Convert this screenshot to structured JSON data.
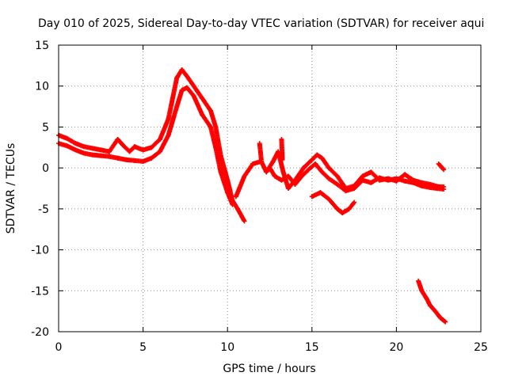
{
  "chart_data": {
    "type": "scatter",
    "title": "Day 010 of 2025, Sidereal Day-to-day VTEC variation (SDTVAR) for receiver aqui",
    "xlabel": "GPS time / hours",
    "ylabel": "SDTVAR / TECUs",
    "xlim": [
      0,
      25
    ],
    "ylim": [
      -20,
      15
    ],
    "xticks": [
      0,
      5,
      10,
      15,
      20,
      25
    ],
    "yticks": [
      -20,
      -15,
      -10,
      -5,
      0,
      5,
      10,
      15
    ],
    "grid": true,
    "legend": "none",
    "marker": "plus",
    "color": "#ff0000",
    "series": [
      {
        "name": "main-trace-upper",
        "points": [
          [
            0.0,
            4.0
          ],
          [
            0.5,
            3.6
          ],
          [
            1.0,
            3.0
          ],
          [
            1.5,
            2.6
          ],
          [
            2.0,
            2.4
          ],
          [
            2.5,
            2.2
          ],
          [
            3.0,
            2.0
          ],
          [
            3.5,
            3.5
          ],
          [
            3.8,
            2.8
          ],
          [
            4.2,
            2.0
          ],
          [
            4.5,
            2.6
          ],
          [
            5.0,
            2.2
          ],
          [
            5.5,
            2.5
          ],
          [
            6.0,
            3.5
          ],
          [
            6.5,
            6.0
          ],
          [
            7.0,
            11.0
          ],
          [
            7.3,
            12.0
          ],
          [
            7.6,
            11.2
          ],
          [
            8.0,
            10.0
          ],
          [
            8.5,
            8.5
          ],
          [
            9.0,
            7.0
          ],
          [
            9.3,
            5.0
          ],
          [
            9.6,
            1.5
          ],
          [
            10.0,
            -1.5
          ],
          [
            10.3,
            -4.0
          ],
          [
            10.6,
            -5.0
          ],
          [
            11.0,
            -6.5
          ]
        ]
      },
      {
        "name": "main-trace-lower",
        "points": [
          [
            0.0,
            3.0
          ],
          [
            0.5,
            2.7
          ],
          [
            1.0,
            2.2
          ],
          [
            1.5,
            1.8
          ],
          [
            2.0,
            1.6
          ],
          [
            2.5,
            1.5
          ],
          [
            3.0,
            1.4
          ],
          [
            3.5,
            1.2
          ],
          [
            4.0,
            1.0
          ],
          [
            4.5,
            0.9
          ],
          [
            5.0,
            0.8
          ],
          [
            5.5,
            1.2
          ],
          [
            6.0,
            2.0
          ],
          [
            6.5,
            4.0
          ],
          [
            7.0,
            7.5
          ],
          [
            7.3,
            9.5
          ],
          [
            7.6,
            9.8
          ],
          [
            8.0,
            8.8
          ],
          [
            8.5,
            6.5
          ],
          [
            9.0,
            5.0
          ],
          [
            9.3,
            2.5
          ],
          [
            9.6,
            -0.5
          ],
          [
            10.0,
            -3.0
          ],
          [
            10.3,
            -4.5
          ]
        ]
      },
      {
        "name": "mid-trace",
        "points": [
          [
            10.5,
            -3.5
          ],
          [
            11.0,
            -1.0
          ],
          [
            11.5,
            0.5
          ],
          [
            12.0,
            0.8
          ],
          [
            12.3,
            -0.5
          ],
          [
            12.7,
            0.8
          ],
          [
            13.0,
            2.0
          ],
          [
            13.3,
            -0.5
          ],
          [
            13.6,
            -2.5
          ],
          [
            14.0,
            -1.5
          ],
          [
            14.5,
            0.0
          ],
          [
            15.0,
            1.0
          ],
          [
            15.3,
            1.6
          ],
          [
            15.6,
            1.2
          ],
          [
            16.0,
            0.0
          ],
          [
            16.5,
            -1.0
          ],
          [
            17.0,
            -2.5
          ],
          [
            17.5,
            -2.2
          ],
          [
            18.0,
            -1.0
          ],
          [
            18.5,
            -0.5
          ],
          [
            19.0,
            -1.5
          ],
          [
            19.5,
            -1.3
          ],
          [
            20.0,
            -1.6
          ],
          [
            20.5,
            -0.8
          ],
          [
            21.0,
            -1.5
          ],
          [
            21.5,
            -1.8
          ],
          [
            22.0,
            -2.0
          ],
          [
            22.5,
            -2.3
          ],
          [
            22.8,
            -2.3
          ]
        ]
      },
      {
        "name": "mid-trace-echo",
        "points": [
          [
            12.5,
            0.0
          ],
          [
            12.8,
            -1.0
          ],
          [
            13.2,
            -1.5
          ],
          [
            13.6,
            -1.0
          ],
          [
            14.0,
            -2.0
          ],
          [
            14.4,
            -1.0
          ],
          [
            14.8,
            -0.2
          ],
          [
            15.2,
            0.5
          ],
          [
            15.6,
            -0.5
          ],
          [
            16.0,
            -1.3
          ],
          [
            16.5,
            -2.0
          ],
          [
            17.0,
            -2.8
          ],
          [
            17.5,
            -2.5
          ],
          [
            18.0,
            -1.5
          ],
          [
            18.5,
            -1.8
          ],
          [
            19.0,
            -1.2
          ],
          [
            19.5,
            -1.5
          ],
          [
            20.0,
            -1.3
          ],
          [
            20.5,
            -1.6
          ],
          [
            21.0,
            -1.8
          ],
          [
            21.5,
            -2.2
          ],
          [
            22.0,
            -2.4
          ],
          [
            22.8,
            -2.6
          ]
        ]
      },
      {
        "name": "dip-segment",
        "points": [
          [
            15.0,
            -3.5
          ],
          [
            15.5,
            -3.0
          ],
          [
            16.0,
            -3.8
          ],
          [
            16.5,
            -5.0
          ],
          [
            16.8,
            -5.5
          ],
          [
            17.2,
            -5.0
          ],
          [
            17.5,
            -4.2
          ]
        ]
      },
      {
        "name": "spike-segments",
        "points": [
          [
            11.9,
            3.0
          ],
          [
            12.0,
            1.0
          ],
          [
            13.2,
            3.5
          ],
          [
            13.25,
            1.0
          ],
          [
            22.5,
            0.5
          ],
          [
            22.8,
            -0.2
          ]
        ]
      },
      {
        "name": "descending-segment",
        "points": [
          [
            21.3,
            -13.8
          ],
          [
            21.5,
            -15.0
          ],
          [
            21.8,
            -16.0
          ],
          [
            22.0,
            -16.8
          ],
          [
            22.3,
            -17.5
          ],
          [
            22.6,
            -18.3
          ],
          [
            22.9,
            -18.8
          ]
        ]
      }
    ]
  }
}
